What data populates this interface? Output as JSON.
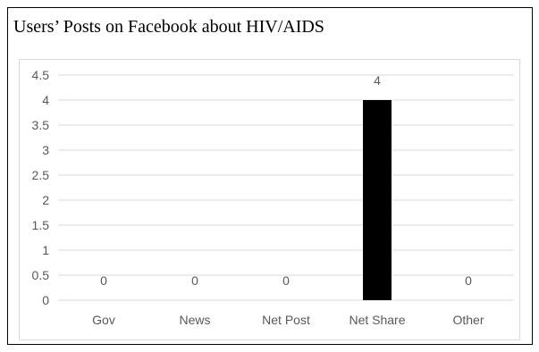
{
  "chart_data": {
    "type": "bar",
    "title": "Users’ Posts on Facebook about HIV/AIDS",
    "categories": [
      "Gov",
      "News",
      "Net Post",
      "Net Share",
      "Other"
    ],
    "values": [
      0,
      0,
      0,
      4,
      0
    ],
    "data_labels": [
      "0",
      "0",
      "0",
      "4",
      "0"
    ],
    "yticks": [
      "0",
      "0.5",
      "1",
      "1.5",
      "2",
      "2.5",
      "3",
      "3.5",
      "4",
      "4.5"
    ],
    "ylim": [
      0,
      4.5
    ],
    "xlabel": "",
    "ylabel": "",
    "grid": true,
    "legend": "none",
    "bar_color": "#000000",
    "grid_color": "#d9d9d9",
    "label_color": "#595959"
  }
}
